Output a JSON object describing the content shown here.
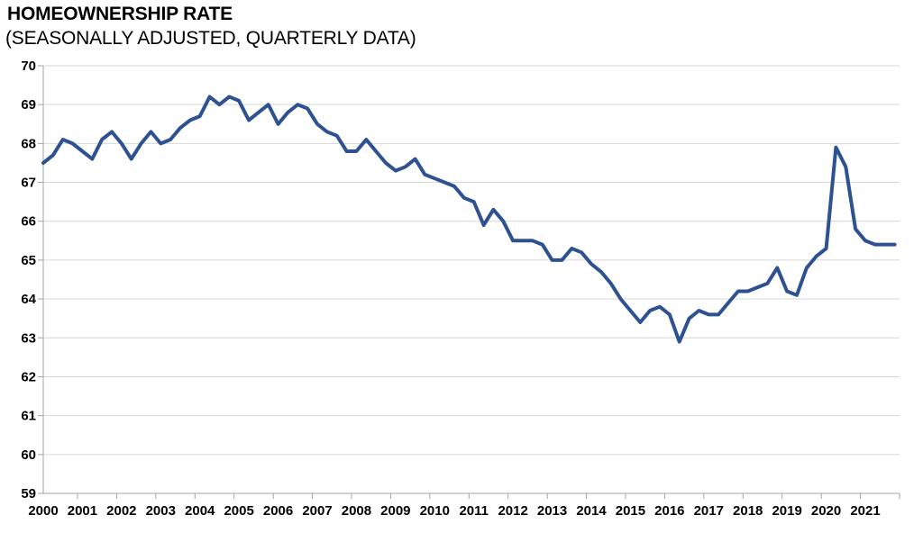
{
  "chart_data": {
    "type": "line",
    "title": "HOMEOWNERSHIP RATE",
    "subtitle": "(SEASONALLY ADJUSTED, QUARTERLY DATA)",
    "frequency": "quarterly",
    "x_range": [
      "2000Q1",
      "2021Q4"
    ],
    "xlabel": "",
    "ylabel": "",
    "ylim": [
      59,
      70
    ],
    "y_step": 1,
    "yticks": [
      70,
      69,
      68,
      67,
      66,
      65,
      64,
      63,
      62,
      61,
      60,
      59
    ],
    "years": [
      "2000",
      "2001",
      "2002",
      "2003",
      "2004",
      "2005",
      "2006",
      "2007",
      "2008",
      "2009",
      "2010",
      "2011",
      "2012",
      "2013",
      "2014",
      "2015",
      "2016",
      "2017",
      "2018",
      "2019",
      "2020",
      "2021"
    ],
    "grid": true,
    "legend_position": "none",
    "series": [
      {
        "name": "Homeownership rate (%)",
        "color": "#2E5191",
        "values": [
          67.5,
          67.7,
          68.1,
          68.0,
          67.8,
          67.6,
          68.1,
          68.3,
          68.0,
          67.6,
          68.0,
          68.3,
          68.0,
          68.1,
          68.4,
          68.6,
          68.7,
          69.2,
          69.0,
          69.2,
          69.1,
          68.6,
          68.8,
          69.0,
          68.5,
          68.8,
          69.0,
          68.9,
          68.5,
          68.3,
          68.2,
          67.8,
          67.8,
          68.1,
          67.8,
          67.5,
          67.3,
          67.4,
          67.6,
          67.2,
          67.1,
          67.0,
          66.9,
          66.6,
          66.5,
          65.9,
          66.3,
          66.0,
          65.5,
          65.5,
          65.5,
          65.4,
          65.0,
          65.0,
          65.3,
          65.2,
          64.9,
          64.7,
          64.4,
          64.0,
          63.7,
          63.4,
          63.7,
          63.8,
          63.6,
          62.9,
          63.5,
          63.7,
          63.6,
          63.6,
          63.9,
          64.2,
          64.2,
          64.3,
          64.4,
          64.8,
          64.2,
          64.1,
          64.8,
          65.1,
          65.3,
          67.9,
          67.4,
          65.8,
          65.5,
          65.4,
          65.4,
          65.4
        ]
      }
    ],
    "colors": {
      "line": "#2E5191",
      "gridline": "#D6D6D6",
      "axis": "#A6A6A6",
      "text": "#000000",
      "background": "#FFFFFF"
    }
  }
}
